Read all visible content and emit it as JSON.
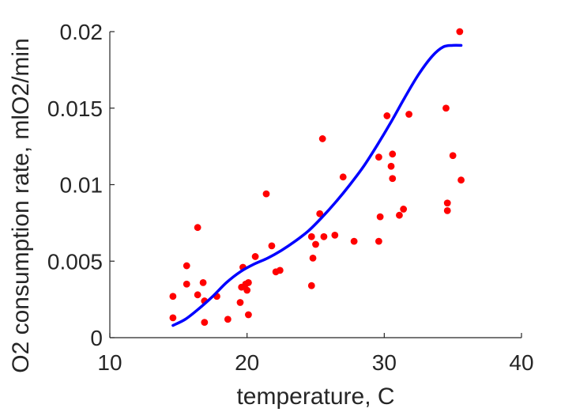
{
  "chart_data": {
    "type": "scatter",
    "title": "",
    "xlabel": "temperature, C",
    "ylabel": "O2 consumption rate, mlO2/min",
    "xlim": [
      10,
      40
    ],
    "ylim": [
      0,
      0.02
    ],
    "xticks": [
      10,
      20,
      30,
      40
    ],
    "xtick_labels": [
      "10",
      "20",
      "30",
      "40"
    ],
    "yticks": [
      0,
      0.005,
      0.01,
      0.015,
      0.02
    ],
    "ytick_labels": [
      "0",
      "0.005",
      "0.01",
      "0.015",
      "0.02"
    ],
    "grid": false,
    "series": [
      {
        "kind": "points",
        "color": "#ff0000",
        "x": [
          14.6,
          14.6,
          15.6,
          15.6,
          16.4,
          16.4,
          16.8,
          16.9,
          16.9,
          17.8,
          18.6,
          19.5,
          19.6,
          19.7,
          19.9,
          20.0,
          20.1,
          20.1,
          20.6,
          21.4,
          21.8,
          22.1,
          22.4,
          24.7,
          24.7,
          24.8,
          25.0,
          25.3,
          25.5,
          25.6,
          26.4,
          27.0,
          27.8,
          29.6,
          29.6,
          29.7,
          30.2,
          30.5,
          30.6,
          30.6,
          31.1,
          31.4,
          31.8,
          34.5,
          34.6,
          34.6,
          35.0,
          35.5,
          35.6
        ],
        "y": [
          0.0027,
          0.0013,
          0.0047,
          0.0035,
          0.0072,
          0.0028,
          0.0036,
          0.0024,
          0.001,
          0.0027,
          0.0012,
          0.0023,
          0.0033,
          0.0046,
          0.0035,
          0.0031,
          0.0015,
          0.0036,
          0.0053,
          0.0094,
          0.006,
          0.0043,
          0.0044,
          0.0066,
          0.0034,
          0.0052,
          0.0061,
          0.0081,
          0.013,
          0.0066,
          0.0067,
          0.0105,
          0.0063,
          0.0118,
          0.0063,
          0.0079,
          0.0145,
          0.0112,
          0.0104,
          0.012,
          0.008,
          0.0084,
          0.0146,
          0.015,
          0.0088,
          0.0083,
          0.0119,
          0.02,
          0.0103
        ]
      },
      {
        "kind": "line",
        "color": "#0000ff",
        "x": [
          14.6,
          15.5,
          16.5,
          17.5,
          18.5,
          19.5,
          20.5,
          21.5,
          22.5,
          23.5,
          24.5,
          25.5,
          26.5,
          27.5,
          28.5,
          29.5,
          30.5,
          31.5,
          32.5,
          33.5,
          34.3,
          35.0,
          35.6
        ],
        "y": [
          0.0008,
          0.0012,
          0.0019,
          0.0027,
          0.0036,
          0.0043,
          0.0048,
          0.0052,
          0.0057,
          0.0063,
          0.007,
          0.0079,
          0.0089,
          0.01,
          0.0112,
          0.0126,
          0.0141,
          0.0157,
          0.0172,
          0.0184,
          0.019,
          0.0191,
          0.0191
        ]
      }
    ]
  }
}
